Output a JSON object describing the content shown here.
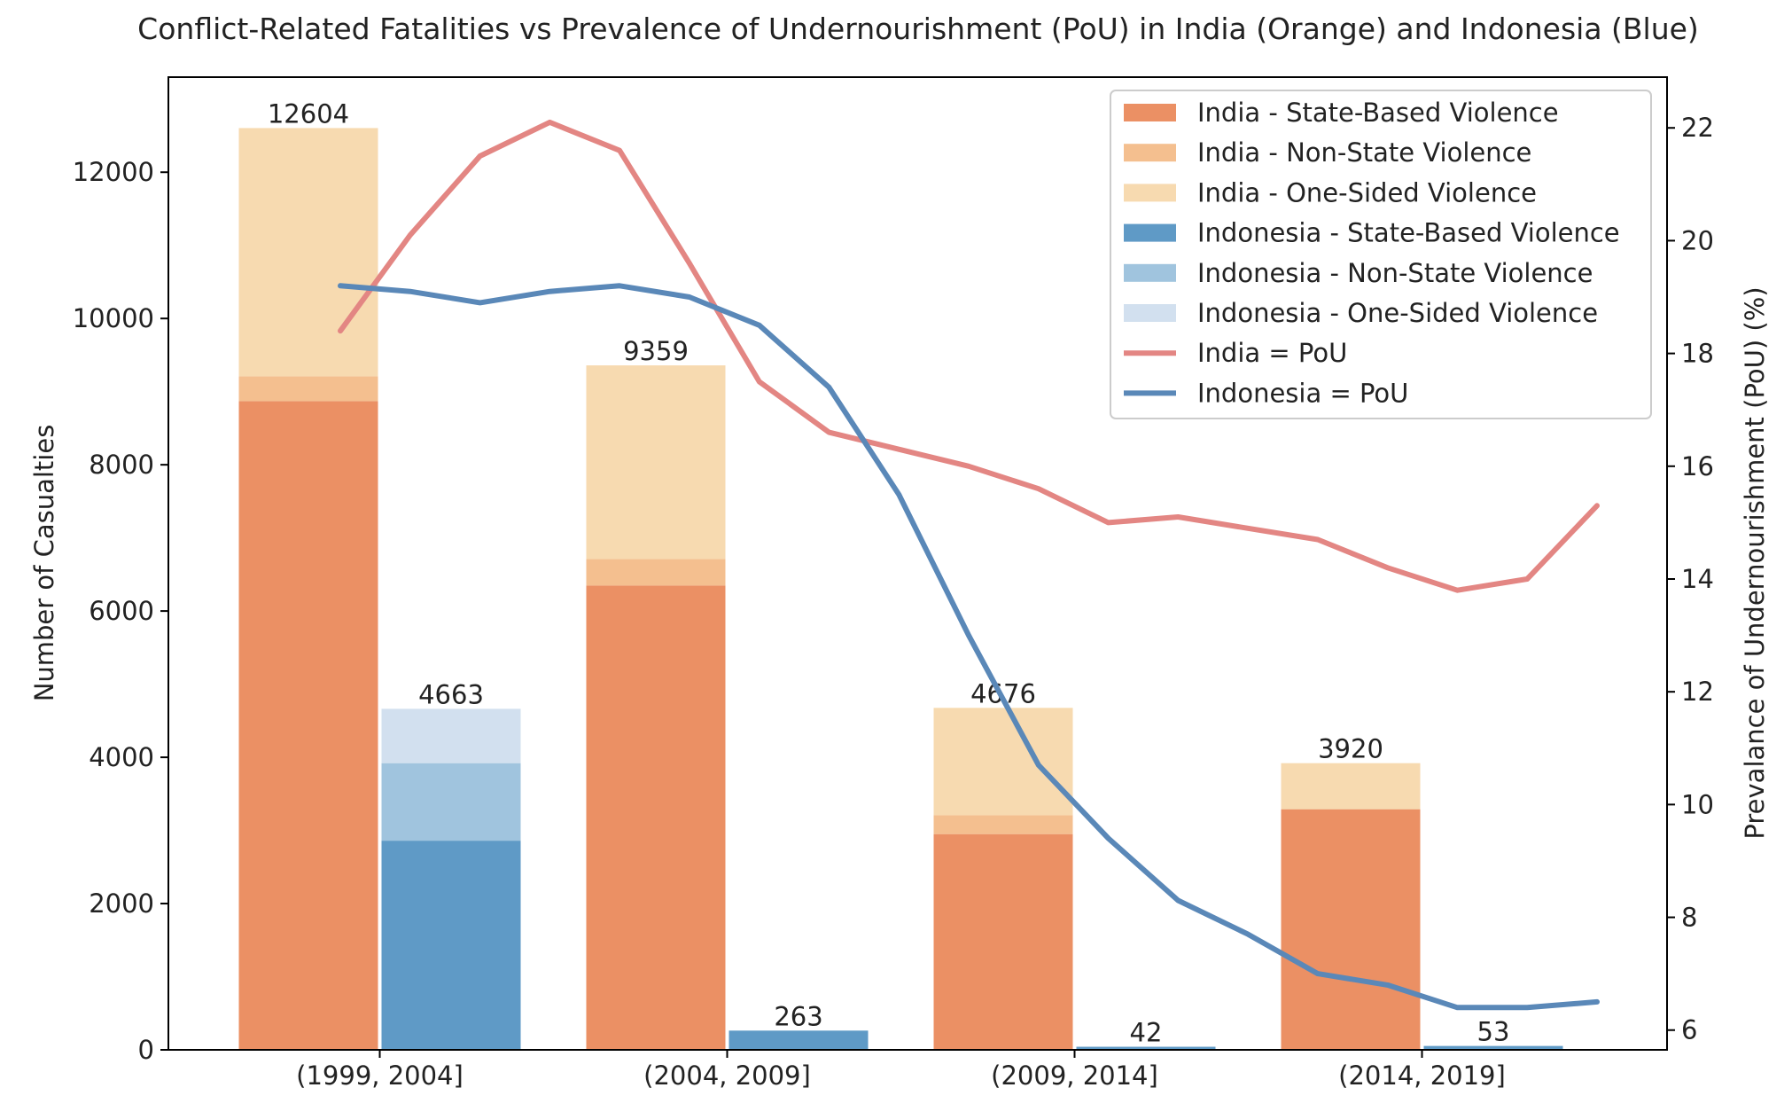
{
  "chart_data": {
    "type": "bar",
    "title": "Conflict-Related Fatalities vs Prevalence of Undernourishment (PoU) in India (Orange) and Indonesia (Blue)",
    "xlabel": "",
    "ylabel": "Number of Casualties",
    "y2label": "Prevalance of Undernourishment (PoU) (%)",
    "ylim": [
      0,
      13300
    ],
    "y2lim": [
      5.65,
      22.9
    ],
    "yticks": [
      0,
      2000,
      4000,
      6000,
      8000,
      10000,
      12000
    ],
    "y2ticks": [
      6,
      8,
      10,
      12,
      14,
      16,
      18,
      20,
      22
    ],
    "categories": [
      "(1999, 2004]",
      "(2004, 2009]",
      "(2009, 2014]",
      "(2014, 2019]"
    ],
    "stacked": true,
    "grid": false,
    "legend_position": "top-right",
    "bar_series": [
      {
        "name": "India - State-Based Violence",
        "group": "India",
        "color": "#eb9064",
        "values": [
          8870,
          6350,
          2950,
          3290
        ]
      },
      {
        "name": "India - Non-State Violence",
        "group": "India",
        "color": "#f4bf8f",
        "values": [
          340,
          360,
          260,
          0
        ]
      },
      {
        "name": "India - One-Sided Violence",
        "group": "India",
        "color": "#f7dab0",
        "values": [
          3394,
          2649,
          1466,
          630
        ]
      },
      {
        "name": "Indonesia - State-Based Violence",
        "group": "Indonesia",
        "color": "#5f9ac6",
        "values": [
          2860,
          263,
          42,
          53
        ]
      },
      {
        "name": "Indonesia - Non-State Violence",
        "group": "Indonesia",
        "color": "#a0c4de",
        "values": [
          1060,
          0,
          0,
          0
        ]
      },
      {
        "name": "Indonesia - One-Sided Violence",
        "group": "Indonesia",
        "color": "#d2e0ef",
        "values": [
          743,
          0,
          0,
          0
        ]
      }
    ],
    "totals": {
      "India": [
        12604,
        9359,
        4676,
        3920
      ],
      "Indonesia": [
        4663,
        263,
        42,
        53
      ]
    },
    "line_series": [
      {
        "name": "India = PoU",
        "color": "#e38683",
        "values": [
          18.4,
          20.1,
          21.5,
          22.1,
          21.6,
          19.6,
          17.5,
          16.6,
          16.3,
          16.0,
          15.6,
          15.0,
          15.1,
          14.9,
          14.7,
          14.2,
          13.8,
          14.0,
          15.3
        ]
      },
      {
        "name": "Indonesia = PoU",
        "color": "#5a88b8",
        "values": [
          19.2,
          19.1,
          18.9,
          19.1,
          19.2,
          19.0,
          18.5,
          17.4,
          15.5,
          13.0,
          10.7,
          9.4,
          8.3,
          7.7,
          7.0,
          6.8,
          6.4,
          6.4,
          6.5
        ]
      }
    ]
  }
}
